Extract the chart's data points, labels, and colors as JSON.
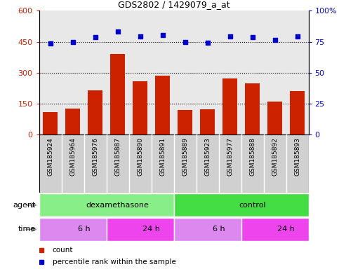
{
  "title": "GDS2802 / 1429079_a_at",
  "samples": [
    "GSM185924",
    "GSM185964",
    "GSM185976",
    "GSM185887",
    "GSM185890",
    "GSM185891",
    "GSM185889",
    "GSM185923",
    "GSM185977",
    "GSM185888",
    "GSM185892",
    "GSM185893"
  ],
  "counts": [
    107,
    125,
    215,
    390,
    258,
    285,
    118,
    123,
    272,
    248,
    158,
    212
  ],
  "percentiles": [
    73.5,
    74.5,
    78.5,
    83,
    79.5,
    80.5,
    75,
    74,
    79.5,
    78.5,
    76.5,
    79.5
  ],
  "ylim_left": [
    0,
    600
  ],
  "ylim_right": [
    0,
    100
  ],
  "yticks_left": [
    0,
    150,
    300,
    450,
    600
  ],
  "yticks_right": [
    0,
    25,
    50,
    75,
    100
  ],
  "bar_color": "#cc2200",
  "scatter_color": "#0000cc",
  "plot_bg": "#e8e8e8",
  "agent_groups": [
    {
      "label": "dexamethasone",
      "start": 0,
      "end": 6,
      "color": "#88ee88"
    },
    {
      "label": "control",
      "start": 6,
      "end": 12,
      "color": "#44dd44"
    }
  ],
  "time_groups": [
    {
      "label": "6 h",
      "start": 0,
      "end": 3,
      "color": "#dd88ee"
    },
    {
      "label": "24 h",
      "start": 3,
      "end": 6,
      "color": "#ee44ee"
    },
    {
      "label": "6 h",
      "start": 6,
      "end": 9,
      "color": "#dd88ee"
    },
    {
      "label": "24 h",
      "start": 9,
      "end": 12,
      "color": "#ee44ee"
    }
  ],
  "legend_items": [
    {
      "label": "count",
      "color": "#cc2200"
    },
    {
      "label": "percentile rank within the sample",
      "color": "#0000cc"
    }
  ]
}
